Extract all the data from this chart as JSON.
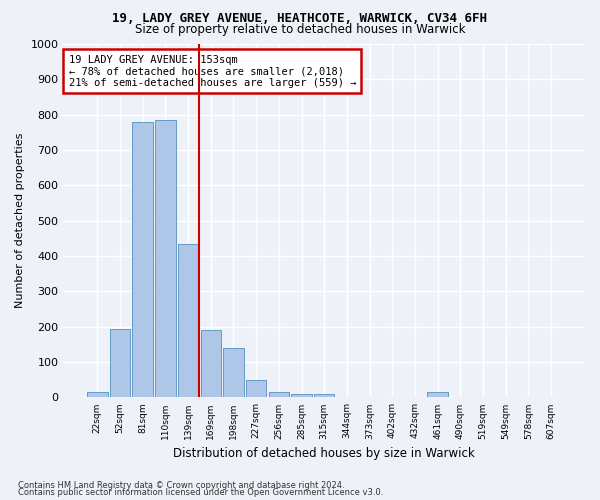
{
  "title1": "19, LADY GREY AVENUE, HEATHCOTE, WARWICK, CV34 6FH",
  "title2": "Size of property relative to detached houses in Warwick",
  "xlabel": "Distribution of detached houses by size in Warwick",
  "ylabel": "Number of detached properties",
  "bin_labels": [
    "22sqm",
    "52sqm",
    "81sqm",
    "110sqm",
    "139sqm",
    "169sqm",
    "198sqm",
    "227sqm",
    "256sqm",
    "285sqm",
    "315sqm",
    "344sqm",
    "373sqm",
    "402sqm",
    "432sqm",
    "461sqm",
    "490sqm",
    "519sqm",
    "549sqm",
    "578sqm",
    "607sqm"
  ],
  "bar_heights": [
    15,
    195,
    780,
    785,
    435,
    190,
    140,
    50,
    15,
    10,
    10,
    0,
    0,
    0,
    0,
    15,
    0,
    0,
    0,
    0,
    0
  ],
  "bar_color": "#aec6e8",
  "bar_edge_color": "#5590bf",
  "vline_x": 4.5,
  "vline_color": "#cc0000",
  "annotation_text": "19 LADY GREY AVENUE: 153sqm\n← 78% of detached houses are smaller (2,018)\n21% of semi-detached houses are larger (559) →",
  "annotation_box_color": "#ffffff",
  "annotation_box_edge": "#cc0000",
  "ylim": [
    0,
    1000
  ],
  "yticks": [
    0,
    100,
    200,
    300,
    400,
    500,
    600,
    700,
    800,
    900,
    1000
  ],
  "footer1": "Contains HM Land Registry data © Crown copyright and database right 2024.",
  "footer2": "Contains public sector information licensed under the Open Government Licence v3.0.",
  "background_color": "#eef2f8",
  "grid_color": "#ffffff"
}
